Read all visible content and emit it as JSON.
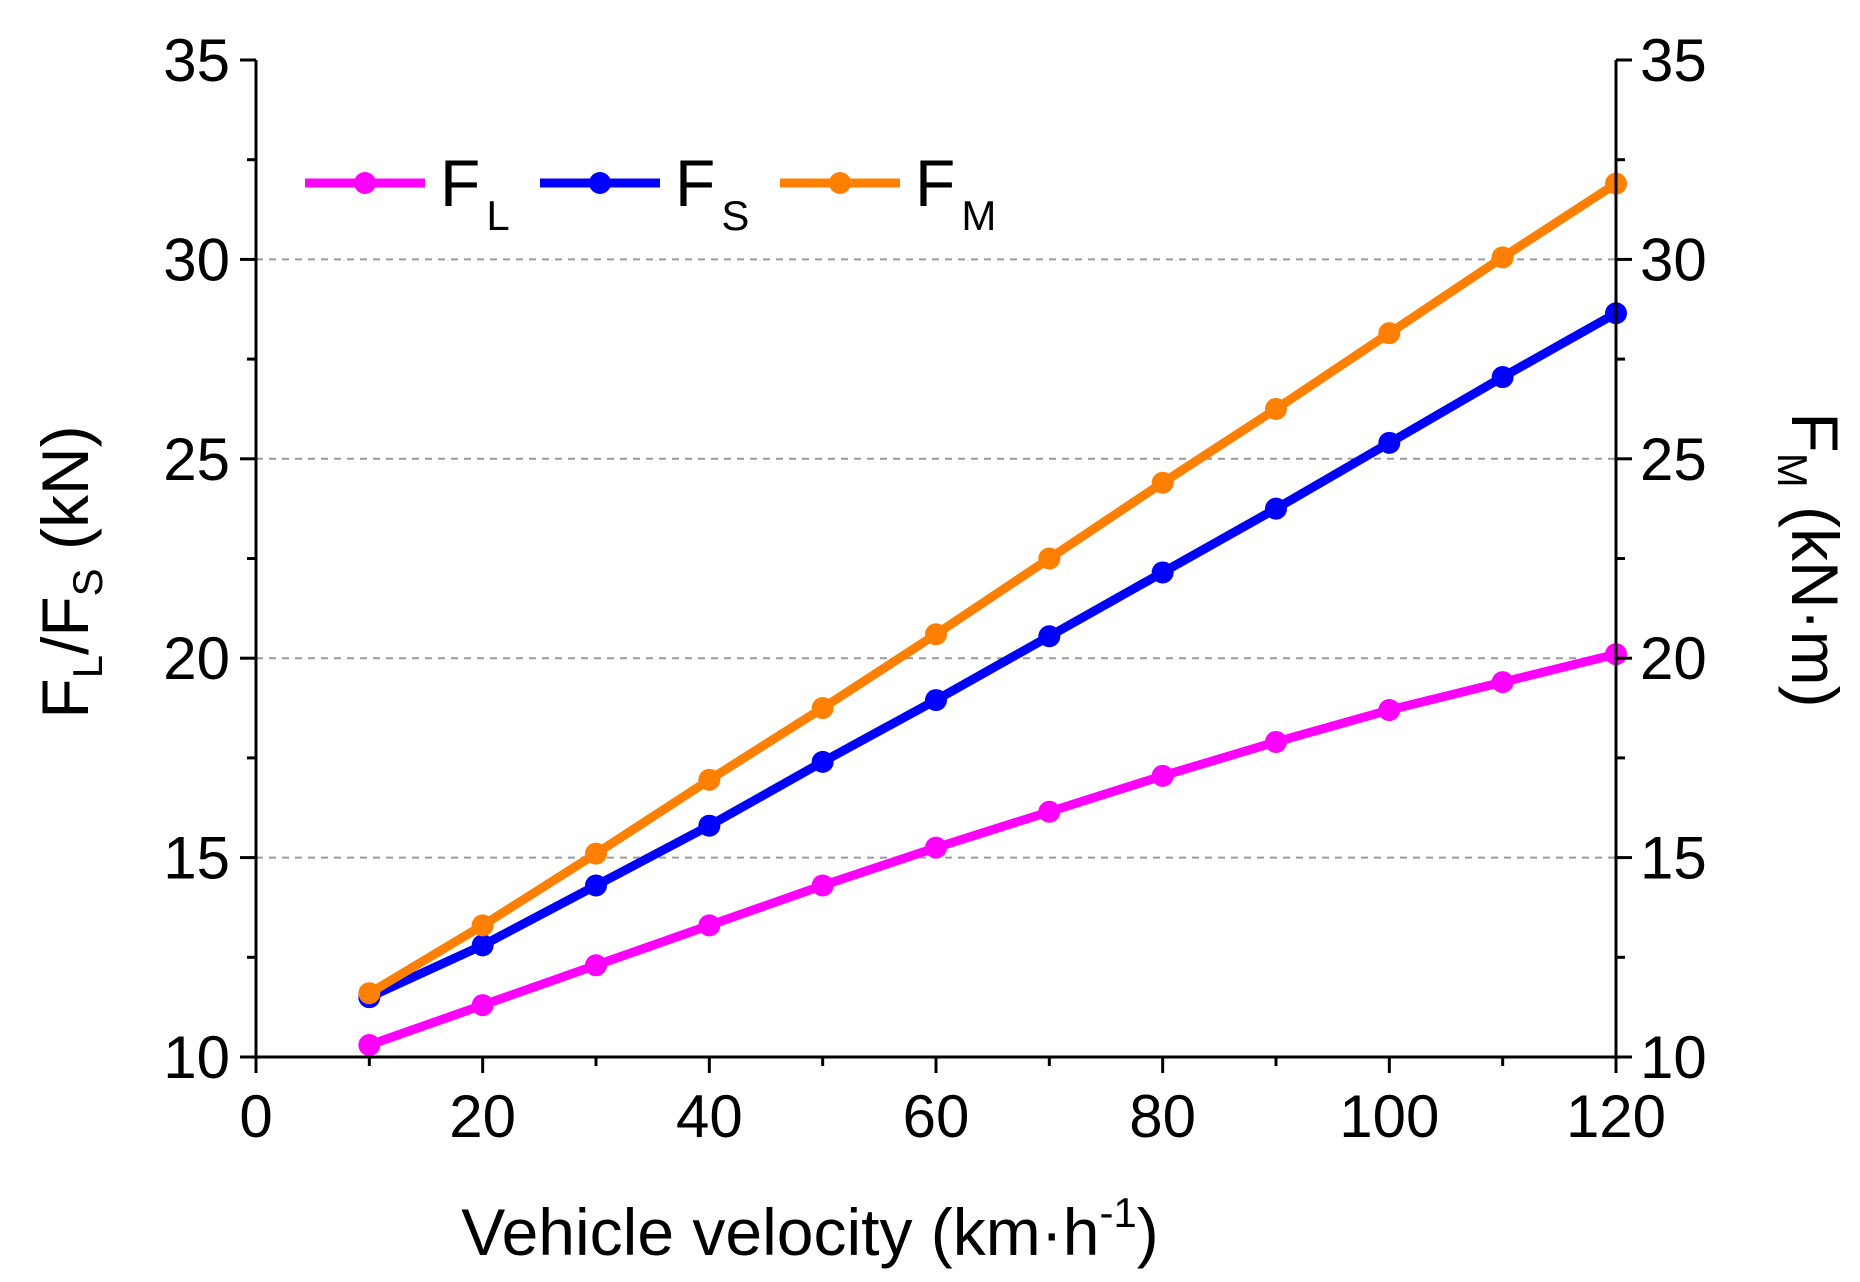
{
  "chart_data": {
    "type": "line",
    "x": [
      10,
      20,
      30,
      40,
      50,
      60,
      70,
      80,
      90,
      100,
      110,
      120
    ],
    "xlim": [
      0,
      120
    ],
    "ylim_left": [
      10,
      35
    ],
    "ylim_right": [
      10,
      35
    ],
    "x_ticks": [
      "0",
      "20",
      "40",
      "60",
      "80",
      "100",
      "120"
    ],
    "y_ticks_left": [
      "10",
      "15",
      "20",
      "25",
      "30",
      "35"
    ],
    "y_ticks_right": [
      "10",
      "15",
      "20",
      "25",
      "30",
      "35"
    ],
    "grid": "dashed horizontal at 15, 20, 25, 30",
    "xlabel": {
      "main": "Vehicle velocity (km·h",
      "sup": "-1",
      "end": ")"
    },
    "ylabel_left": {
      "f1": "F",
      "s1": "L",
      "slash": "/F",
      "s2": "S",
      "unit": " (kN)"
    },
    "ylabel_right": {
      "f": "F",
      "s": "M",
      "unit": " (kN·m)"
    },
    "legend_position": "top-left",
    "series": [
      {
        "key": "FL",
        "name": "F",
        "sub": "L",
        "color": "#ff00ff",
        "axis": "left",
        "values": [
          10.3,
          11.3,
          12.3,
          13.3,
          14.3,
          15.25,
          16.15,
          17.05,
          17.9,
          18.7,
          19.4,
          20.1
        ]
      },
      {
        "key": "FS",
        "name": "F",
        "sub": "S",
        "color": "#0000ff",
        "axis": "left",
        "values": [
          11.5,
          12.8,
          14.3,
          15.8,
          17.4,
          18.95,
          20.55,
          22.15,
          23.75,
          25.4,
          27.05,
          28.65
        ]
      },
      {
        "key": "FM",
        "name": "F",
        "sub": "M",
        "color": "#ff8000",
        "axis": "right",
        "values": [
          11.6,
          13.3,
          15.1,
          16.95,
          18.75,
          20.6,
          22.5,
          24.4,
          26.25,
          28.15,
          30.05,
          31.9
        ]
      }
    ]
  }
}
